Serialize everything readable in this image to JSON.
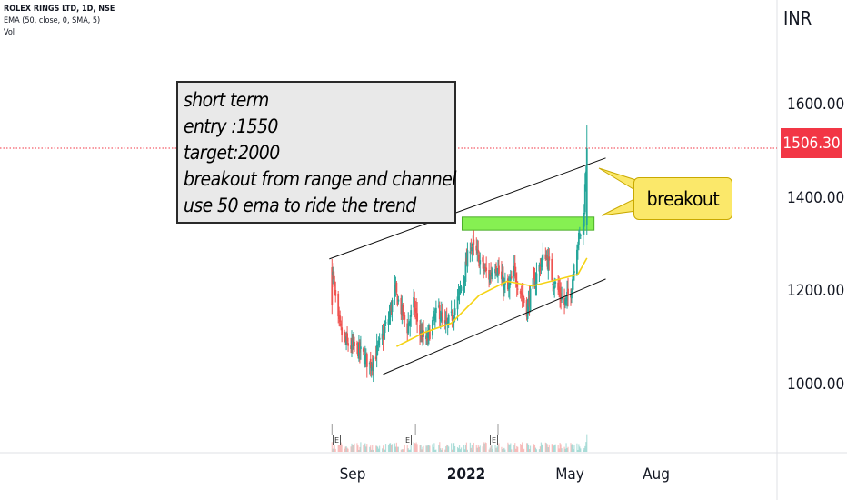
{
  "legend": {
    "symbol": "ROLEX RINGS LTD, 1D, NSE",
    "ema": "EMA (50, close, 0, SMA, 5)",
    "vol": "Vol"
  },
  "note": {
    "lines": [
      "short term",
      "entry :1550",
      "target:2000",
      "breakout from range and channel",
      "use 50 ema to ride the trend"
    ]
  },
  "callout": {
    "text": "breakout"
  },
  "colors": {
    "up": "#26a69a",
    "down": "#ef5350",
    "ema": "#f5d313",
    "zone": "#86f052",
    "price_line": "#f23645",
    "badge": "#f23645"
  },
  "chart_data": {
    "type": "candlestick",
    "title": "ROLEX RINGS LTD, 1D, NSE",
    "ylabel": "INR",
    "y_ticks": [
      "1600.00",
      "1400.00",
      "1200.00",
      "1000.00"
    ],
    "y_tick_values": [
      1600,
      1400,
      1200,
      1000
    ],
    "x_ticks": [
      "Sep",
      "2022",
      "May",
      "Aug"
    ],
    "x_tick_dates": [
      "2021-09-01",
      "2022-01-01",
      "2022-05-01",
      "2022-08-01"
    ],
    "last_price": "1506.30",
    "last_price_value": 1506.3,
    "date_range": [
      "2021-08-09",
      "2022-05-20"
    ],
    "anchor_closes": [
      [
        "2021-08-09",
        1250
      ],
      [
        "2021-08-16",
        1130
      ],
      [
        "2021-08-23",
        1090
      ],
      [
        "2021-08-30",
        1080
      ],
      [
        "2021-09-06",
        1075
      ],
      [
        "2021-09-13",
        1060
      ],
      [
        "2021-09-20",
        1040
      ],
      [
        "2021-09-27",
        1065
      ],
      [
        "2021-10-04",
        1100
      ],
      [
        "2021-10-11",
        1140
      ],
      [
        "2021-10-18",
        1200
      ],
      [
        "2021-10-25",
        1160
      ],
      [
        "2021-11-01",
        1120
      ],
      [
        "2021-11-08",
        1170
      ],
      [
        "2021-11-15",
        1110
      ],
      [
        "2021-11-22",
        1090
      ],
      [
        "2021-11-29",
        1130
      ],
      [
        "2021-12-06",
        1160
      ],
      [
        "2021-12-13",
        1120
      ],
      [
        "2021-12-20",
        1140
      ],
      [
        "2021-12-27",
        1180
      ],
      [
        "2022-01-03",
        1230
      ],
      [
        "2022-01-10",
        1300
      ],
      [
        "2022-01-17",
        1280
      ],
      [
        "2022-01-24",
        1250
      ],
      [
        "2022-01-31",
        1230
      ],
      [
        "2022-02-07",
        1260
      ],
      [
        "2022-02-14",
        1220
      ],
      [
        "2022-02-21",
        1200
      ],
      [
        "2022-02-28",
        1240
      ],
      [
        "2022-03-07",
        1200
      ],
      [
        "2022-03-14",
        1160
      ],
      [
        "2022-03-21",
        1210
      ],
      [
        "2022-03-28",
        1250
      ],
      [
        "2022-04-04",
        1280
      ],
      [
        "2022-04-11",
        1230
      ],
      [
        "2022-04-18",
        1200
      ],
      [
        "2022-04-25",
        1170
      ],
      [
        "2022-05-02",
        1200
      ],
      [
        "2022-05-09",
        1300
      ],
      [
        "2022-05-16",
        1340
      ],
      [
        "2022-05-20",
        1506.3
      ]
    ],
    "ema_anchors": [
      [
        "2021-10-20",
        1080
      ],
      [
        "2021-11-20",
        1110
      ],
      [
        "2021-12-20",
        1130
      ],
      [
        "2022-01-20",
        1190
      ],
      [
        "2022-02-20",
        1220
      ],
      [
        "2022-03-20",
        1210
      ],
      [
        "2022-04-20",
        1225
      ],
      [
        "2022-05-10",
        1235
      ],
      [
        "2022-05-20",
        1270
      ]
    ],
    "annotations": {
      "upper_channel": [
        [
          "2021-08-06",
          1268
        ],
        [
          "2022-06-10",
          1485
        ]
      ],
      "lower_channel": [
        [
          "2021-10-05",
          1020
        ],
        [
          "2022-06-10",
          1225
        ]
      ],
      "range_zone": {
        "x": [
          "2022-01-01",
          "2022-05-28"
        ],
        "y": [
          1330,
          1358
        ]
      },
      "earnings_marks": [
        "2021-08-09",
        "2021-11-10",
        "2022-02-10"
      ]
    },
    "ylim": [
      820,
      1760
    ],
    "grid": false,
    "legend": "top-left"
  }
}
